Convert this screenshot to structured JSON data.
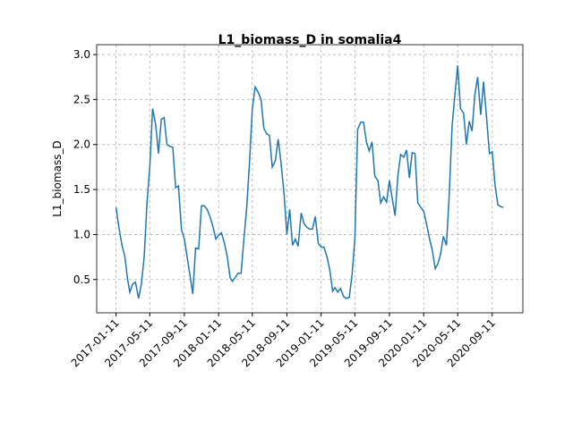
{
  "chart_data": {
    "type": "line",
    "title": "L1_biomass_D in somalia4",
    "ylabel": "L1_biomass_D",
    "x": [
      "2017-01-11",
      "2017-01-21",
      "2017-02-01",
      "2017-02-11",
      "2017-02-21",
      "2017-03-01",
      "2017-03-11",
      "2017-03-21",
      "2017-04-01",
      "2017-04-11",
      "2017-04-21",
      "2017-05-01",
      "2017-05-11",
      "2017-05-21",
      "2017-06-01",
      "2017-06-11",
      "2017-06-21",
      "2017-07-01",
      "2017-07-11",
      "2017-07-21",
      "2017-08-01",
      "2017-08-11",
      "2017-08-21",
      "2017-09-01",
      "2017-09-11",
      "2017-09-21",
      "2017-10-01",
      "2017-10-11",
      "2017-10-21",
      "2017-11-01",
      "2017-11-11",
      "2017-11-21",
      "2017-12-01",
      "2017-12-11",
      "2017-12-21",
      "2018-01-01",
      "2018-01-11",
      "2018-01-21",
      "2018-02-01",
      "2018-02-11",
      "2018-02-21",
      "2018-03-01",
      "2018-03-11",
      "2018-03-21",
      "2018-04-01",
      "2018-04-11",
      "2018-04-21",
      "2018-05-01",
      "2018-05-11",
      "2018-05-21",
      "2018-06-01",
      "2018-06-11",
      "2018-06-21",
      "2018-07-01",
      "2018-07-11",
      "2018-07-21",
      "2018-08-01",
      "2018-08-11",
      "2018-08-21",
      "2018-09-01",
      "2018-09-11",
      "2018-09-21",
      "2018-10-01",
      "2018-10-11",
      "2018-10-21",
      "2018-11-01",
      "2018-11-11",
      "2018-11-21",
      "2018-12-01",
      "2018-12-11",
      "2018-12-21",
      "2019-01-01",
      "2019-01-11",
      "2019-01-21",
      "2019-02-01",
      "2019-02-11",
      "2019-02-21",
      "2019-03-01",
      "2019-03-11",
      "2019-03-21",
      "2019-04-01",
      "2019-04-11",
      "2019-04-21",
      "2019-05-01",
      "2019-05-11",
      "2019-05-21",
      "2019-06-01",
      "2019-06-11",
      "2019-06-21",
      "2019-07-01",
      "2019-07-11",
      "2019-07-21",
      "2019-08-01",
      "2019-08-11",
      "2019-08-21",
      "2019-09-01",
      "2019-09-11",
      "2019-09-21",
      "2019-10-01",
      "2019-10-11",
      "2019-10-21",
      "2019-11-01",
      "2019-11-11",
      "2019-11-21",
      "2019-12-01",
      "2019-12-11",
      "2019-12-21",
      "2020-01-01",
      "2020-01-11",
      "2020-01-21",
      "2020-02-01",
      "2020-02-11",
      "2020-02-21",
      "2020-03-01",
      "2020-03-11",
      "2020-03-21",
      "2020-04-01",
      "2020-04-11",
      "2020-04-21",
      "2020-05-01",
      "2020-05-11",
      "2020-05-21",
      "2020-06-01",
      "2020-06-11",
      "2020-06-21",
      "2020-07-01",
      "2020-07-11",
      "2020-07-21",
      "2020-08-01",
      "2020-08-11",
      "2020-08-21",
      "2020-09-01",
      "2020-09-11",
      "2020-09-21",
      "2020-10-01",
      "2020-10-11",
      "2020-10-21"
    ],
    "series": [
      {
        "name": "L1_biomass_D",
        "color": "#1f77b4",
        "values": [
          1.3,
          1.08,
          0.88,
          0.76,
          0.5,
          0.36,
          0.45,
          0.47,
          0.29,
          0.45,
          0.75,
          1.35,
          1.75,
          2.4,
          2.22,
          1.9,
          2.28,
          2.3,
          2.0,
          1.98,
          1.97,
          1.52,
          1.54,
          1.05,
          0.95,
          0.75,
          0.55,
          0.34,
          0.85,
          0.84,
          1.32,
          1.32,
          1.28,
          1.2,
          1.1,
          0.95,
          0.99,
          1.02,
          0.9,
          0.75,
          0.52,
          0.48,
          0.52,
          0.57,
          0.57,
          0.95,
          1.3,
          1.8,
          2.4,
          2.64,
          2.58,
          2.5,
          2.18,
          2.12,
          2.1,
          1.75,
          1.82,
          2.06,
          1.8,
          1.45,
          1.0,
          1.28,
          0.88,
          0.95,
          0.87,
          1.24,
          1.12,
          1.08,
          1.06,
          1.06,
          1.2,
          0.9,
          0.86,
          0.86,
          0.75,
          0.6,
          0.37,
          0.41,
          0.36,
          0.4,
          0.31,
          0.29,
          0.3,
          0.55,
          0.95,
          2.17,
          2.25,
          2.25,
          2.03,
          1.93,
          2.03,
          1.65,
          1.6,
          1.35,
          1.42,
          1.36,
          1.6,
          1.4,
          1.21,
          1.65,
          1.89,
          1.86,
          1.94,
          1.63,
          1.91,
          1.9,
          1.35,
          1.3,
          1.26,
          1.12,
          0.95,
          0.82,
          0.62,
          0.67,
          0.78,
          0.98,
          0.88,
          1.45,
          2.2,
          2.55,
          2.88,
          2.4,
          2.35,
          2.0,
          2.26,
          2.15,
          2.55,
          2.75,
          2.33,
          2.7,
          2.33,
          1.9,
          1.92,
          1.55,
          1.33,
          1.31,
          1.3
        ]
      }
    ],
    "xlim": [
      "2016-11-03",
      "2020-12-29"
    ],
    "xticks": [
      "2017-01-11",
      "2017-05-11",
      "2017-09-11",
      "2018-01-11",
      "2018-05-11",
      "2018-09-11",
      "2019-01-11",
      "2019-05-11",
      "2019-09-11",
      "2020-01-11",
      "2020-05-11",
      "2020-09-11"
    ],
    "ylim": [
      0.13,
      3.11
    ],
    "yticks": [
      0.5,
      {
        "value": 1.0,
        "label": "1.0"
      },
      1.5,
      {
        "value": 2.0,
        "label": "2.0"
      },
      2.5,
      {
        "value": 3.0,
        "label": "3.0"
      }
    ],
    "grid": true
  }
}
